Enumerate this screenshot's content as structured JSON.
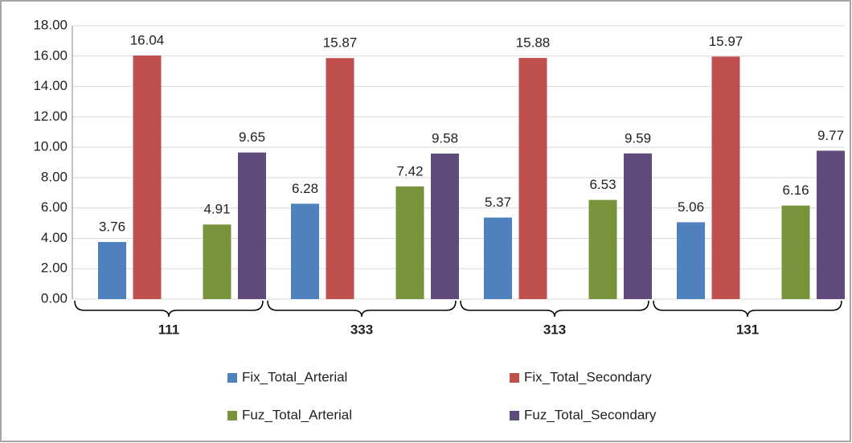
{
  "chart_data": {
    "type": "bar",
    "categories": [
      "111",
      "333",
      "313",
      "131"
    ],
    "series": [
      {
        "name": "Fix_Total_Arterial",
        "color": "#4f81bd",
        "values": [
          3.76,
          6.28,
          5.37,
          5.06
        ]
      },
      {
        "name": "Fix_Total_Secondary",
        "color": "#c0504d",
        "values": [
          16.04,
          15.87,
          15.88,
          15.97
        ]
      },
      {
        "name": "Fuz_Total_Arterial",
        "color": "#77933c",
        "values": [
          4.91,
          7.42,
          6.53,
          6.16
        ]
      },
      {
        "name": "Fuz_Total_Secondary",
        "color": "#604a7b",
        "values": [
          9.65,
          9.58,
          9.59,
          9.77
        ]
      }
    ],
    "ylim": [
      0,
      18
    ],
    "yticks": [
      {
        "value": 0,
        "label": "0.00"
      },
      {
        "value": 2,
        "label": "2.00"
      },
      {
        "value": 4,
        "label": "4.00"
      },
      {
        "value": 6,
        "label": "6.00"
      },
      {
        "value": 8,
        "label": "8.00"
      },
      {
        "value": 10,
        "label": "10.00"
      },
      {
        "value": 12,
        "label": "12.00"
      },
      {
        "value": 14,
        "label": "14.00"
      },
      {
        "value": 16,
        "label": "16.00"
      },
      {
        "value": 18,
        "label": "18.00"
      }
    ],
    "grid": true,
    "legend": "bottom"
  }
}
